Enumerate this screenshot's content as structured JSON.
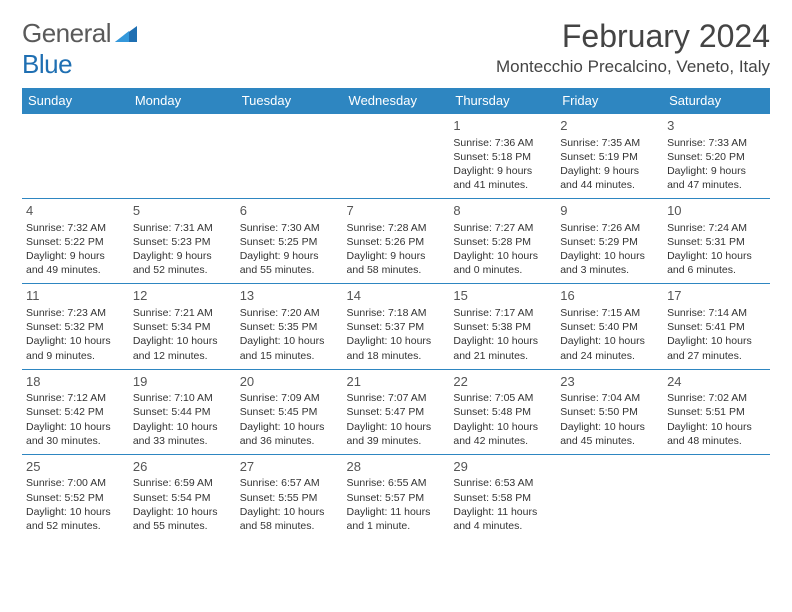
{
  "brand": {
    "text1": "General",
    "text2": "Blue"
  },
  "title": "February 2024",
  "location": "Montecchio Precalcino, Veneto, Italy",
  "colors": {
    "header_bg": "#2e86c1",
    "header_fg": "#ffffff",
    "rule": "#2e86c1",
    "text": "#333333",
    "brand_gray": "#5a5a5a",
    "brand_blue": "#1f6fb2",
    "page_bg": "#ffffff"
  },
  "day_headers": [
    "Sunday",
    "Monday",
    "Tuesday",
    "Wednesday",
    "Thursday",
    "Friday",
    "Saturday"
  ],
  "weeks": [
    [
      null,
      null,
      null,
      null,
      {
        "n": "1",
        "sr": "Sunrise: 7:36 AM",
        "ss": "Sunset: 5:18 PM",
        "d1": "Daylight: 9 hours",
        "d2": "and 41 minutes."
      },
      {
        "n": "2",
        "sr": "Sunrise: 7:35 AM",
        "ss": "Sunset: 5:19 PM",
        "d1": "Daylight: 9 hours",
        "d2": "and 44 minutes."
      },
      {
        "n": "3",
        "sr": "Sunrise: 7:33 AM",
        "ss": "Sunset: 5:20 PM",
        "d1": "Daylight: 9 hours",
        "d2": "and 47 minutes."
      }
    ],
    [
      {
        "n": "4",
        "sr": "Sunrise: 7:32 AM",
        "ss": "Sunset: 5:22 PM",
        "d1": "Daylight: 9 hours",
        "d2": "and 49 minutes."
      },
      {
        "n": "5",
        "sr": "Sunrise: 7:31 AM",
        "ss": "Sunset: 5:23 PM",
        "d1": "Daylight: 9 hours",
        "d2": "and 52 minutes."
      },
      {
        "n": "6",
        "sr": "Sunrise: 7:30 AM",
        "ss": "Sunset: 5:25 PM",
        "d1": "Daylight: 9 hours",
        "d2": "and 55 minutes."
      },
      {
        "n": "7",
        "sr": "Sunrise: 7:28 AM",
        "ss": "Sunset: 5:26 PM",
        "d1": "Daylight: 9 hours",
        "d2": "and 58 minutes."
      },
      {
        "n": "8",
        "sr": "Sunrise: 7:27 AM",
        "ss": "Sunset: 5:28 PM",
        "d1": "Daylight: 10 hours",
        "d2": "and 0 minutes."
      },
      {
        "n": "9",
        "sr": "Sunrise: 7:26 AM",
        "ss": "Sunset: 5:29 PM",
        "d1": "Daylight: 10 hours",
        "d2": "and 3 minutes."
      },
      {
        "n": "10",
        "sr": "Sunrise: 7:24 AM",
        "ss": "Sunset: 5:31 PM",
        "d1": "Daylight: 10 hours",
        "d2": "and 6 minutes."
      }
    ],
    [
      {
        "n": "11",
        "sr": "Sunrise: 7:23 AM",
        "ss": "Sunset: 5:32 PM",
        "d1": "Daylight: 10 hours",
        "d2": "and 9 minutes."
      },
      {
        "n": "12",
        "sr": "Sunrise: 7:21 AM",
        "ss": "Sunset: 5:34 PM",
        "d1": "Daylight: 10 hours",
        "d2": "and 12 minutes."
      },
      {
        "n": "13",
        "sr": "Sunrise: 7:20 AM",
        "ss": "Sunset: 5:35 PM",
        "d1": "Daylight: 10 hours",
        "d2": "and 15 minutes."
      },
      {
        "n": "14",
        "sr": "Sunrise: 7:18 AM",
        "ss": "Sunset: 5:37 PM",
        "d1": "Daylight: 10 hours",
        "d2": "and 18 minutes."
      },
      {
        "n": "15",
        "sr": "Sunrise: 7:17 AM",
        "ss": "Sunset: 5:38 PM",
        "d1": "Daylight: 10 hours",
        "d2": "and 21 minutes."
      },
      {
        "n": "16",
        "sr": "Sunrise: 7:15 AM",
        "ss": "Sunset: 5:40 PM",
        "d1": "Daylight: 10 hours",
        "d2": "and 24 minutes."
      },
      {
        "n": "17",
        "sr": "Sunrise: 7:14 AM",
        "ss": "Sunset: 5:41 PM",
        "d1": "Daylight: 10 hours",
        "d2": "and 27 minutes."
      }
    ],
    [
      {
        "n": "18",
        "sr": "Sunrise: 7:12 AM",
        "ss": "Sunset: 5:42 PM",
        "d1": "Daylight: 10 hours",
        "d2": "and 30 minutes."
      },
      {
        "n": "19",
        "sr": "Sunrise: 7:10 AM",
        "ss": "Sunset: 5:44 PM",
        "d1": "Daylight: 10 hours",
        "d2": "and 33 minutes."
      },
      {
        "n": "20",
        "sr": "Sunrise: 7:09 AM",
        "ss": "Sunset: 5:45 PM",
        "d1": "Daylight: 10 hours",
        "d2": "and 36 minutes."
      },
      {
        "n": "21",
        "sr": "Sunrise: 7:07 AM",
        "ss": "Sunset: 5:47 PM",
        "d1": "Daylight: 10 hours",
        "d2": "and 39 minutes."
      },
      {
        "n": "22",
        "sr": "Sunrise: 7:05 AM",
        "ss": "Sunset: 5:48 PM",
        "d1": "Daylight: 10 hours",
        "d2": "and 42 minutes."
      },
      {
        "n": "23",
        "sr": "Sunrise: 7:04 AM",
        "ss": "Sunset: 5:50 PM",
        "d1": "Daylight: 10 hours",
        "d2": "and 45 minutes."
      },
      {
        "n": "24",
        "sr": "Sunrise: 7:02 AM",
        "ss": "Sunset: 5:51 PM",
        "d1": "Daylight: 10 hours",
        "d2": "and 48 minutes."
      }
    ],
    [
      {
        "n": "25",
        "sr": "Sunrise: 7:00 AM",
        "ss": "Sunset: 5:52 PM",
        "d1": "Daylight: 10 hours",
        "d2": "and 52 minutes."
      },
      {
        "n": "26",
        "sr": "Sunrise: 6:59 AM",
        "ss": "Sunset: 5:54 PM",
        "d1": "Daylight: 10 hours",
        "d2": "and 55 minutes."
      },
      {
        "n": "27",
        "sr": "Sunrise: 6:57 AM",
        "ss": "Sunset: 5:55 PM",
        "d1": "Daylight: 10 hours",
        "d2": "and 58 minutes."
      },
      {
        "n": "28",
        "sr": "Sunrise: 6:55 AM",
        "ss": "Sunset: 5:57 PM",
        "d1": "Daylight: 11 hours",
        "d2": "and 1 minute."
      },
      {
        "n": "29",
        "sr": "Sunrise: 6:53 AM",
        "ss": "Sunset: 5:58 PM",
        "d1": "Daylight: 11 hours",
        "d2": "and 4 minutes."
      },
      null,
      null
    ]
  ]
}
